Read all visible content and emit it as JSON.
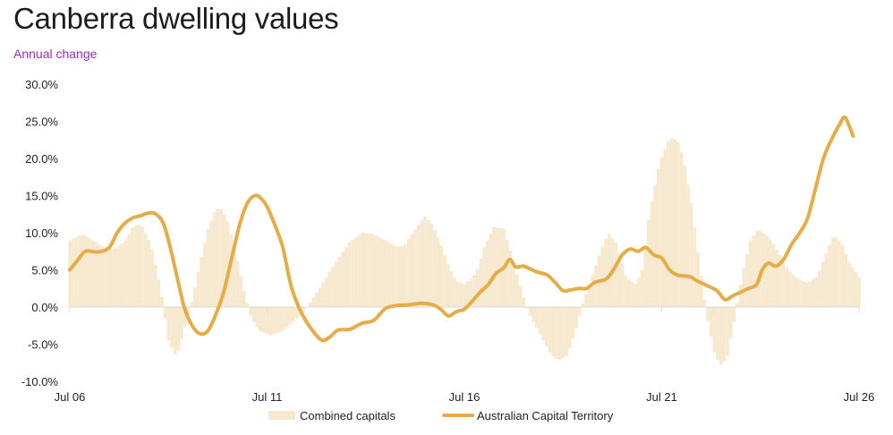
{
  "chart_data": {
    "type": "bar+line",
    "title": "Canberra dwelling values",
    "subtitle": "Annual change",
    "xlabel": "",
    "ylabel": "",
    "ylim": [
      -10,
      30
    ],
    "yticks": [
      -10,
      -5,
      0,
      5,
      10,
      15,
      20,
      25,
      30
    ],
    "ytick_labels": [
      "-10.0%",
      "-5.0%",
      "0.0%",
      "5.0%",
      "10.0%",
      "15.0%",
      "20.0%",
      "25.0%",
      "30.0%"
    ],
    "xlim": [
      2006.5,
      2026.5
    ],
    "xticks": [
      2006.5,
      2011.5,
      2016.5,
      2021.5,
      2026.5
    ],
    "xtick_labels": [
      "Jul 06",
      "Jul 11",
      "Jul 16",
      "Jul 21",
      "Jul 26"
    ],
    "grid": false,
    "legend": "bottom-center",
    "colors": {
      "combined": "#f7e9cf",
      "act": "#e5ac48",
      "axis": "#d9d9d9"
    },
    "series": [
      {
        "name": "Combined capitals",
        "kind": "bar",
        "points": [
          [
            2006.5,
            9.0
          ],
          [
            2006.8,
            9.8
          ],
          [
            2007.0,
            9.3
          ],
          [
            2007.3,
            8.2
          ],
          [
            2007.6,
            7.8
          ],
          [
            2007.9,
            8.8
          ],
          [
            2008.1,
            10.8
          ],
          [
            2008.3,
            11.2
          ],
          [
            2008.55,
            8.5
          ],
          [
            2008.8,
            2.5
          ],
          [
            2009.0,
            -4.5
          ],
          [
            2009.2,
            -6.8
          ],
          [
            2009.4,
            -3.0
          ],
          [
            2009.6,
            1.0
          ],
          [
            2009.8,
            6.0
          ],
          [
            2010.0,
            10.5
          ],
          [
            2010.2,
            13.2
          ],
          [
            2010.35,
            13.2
          ],
          [
            2010.5,
            11.5
          ],
          [
            2010.7,
            7.5
          ],
          [
            2010.9,
            2.5
          ],
          [
            2011.1,
            -1.5
          ],
          [
            2011.3,
            -3.2
          ],
          [
            2011.6,
            -3.8
          ],
          [
            2011.9,
            -3.2
          ],
          [
            2012.1,
            -2.3
          ],
          [
            2012.4,
            -0.8
          ],
          [
            2012.7,
            1.5
          ],
          [
            2013.0,
            4.0
          ],
          [
            2013.3,
            6.5
          ],
          [
            2013.6,
            8.8
          ],
          [
            2013.9,
            10.0
          ],
          [
            2014.2,
            9.8
          ],
          [
            2014.5,
            9.0
          ],
          [
            2014.8,
            8.0
          ],
          [
            2015.0,
            8.5
          ],
          [
            2015.25,
            10.5
          ],
          [
            2015.5,
            12.2
          ],
          [
            2015.7,
            11.0
          ],
          [
            2015.9,
            8.5
          ],
          [
            2016.1,
            5.5
          ],
          [
            2016.3,
            3.5
          ],
          [
            2016.5,
            3.0
          ],
          [
            2016.8,
            4.5
          ],
          [
            2017.0,
            8.0
          ],
          [
            2017.25,
            10.8
          ],
          [
            2017.5,
            10.5
          ],
          [
            2017.7,
            7.0
          ],
          [
            2017.9,
            3.0
          ],
          [
            2018.1,
            -0.5
          ],
          [
            2018.4,
            -3.5
          ],
          [
            2018.7,
            -6.5
          ],
          [
            2018.9,
            -7.2
          ],
          [
            2019.1,
            -6.5
          ],
          [
            2019.3,
            -3.5
          ],
          [
            2019.5,
            0.5
          ],
          [
            2019.7,
            3.5
          ],
          [
            2019.95,
            7.5
          ],
          [
            2020.15,
            10.0
          ],
          [
            2020.35,
            8.5
          ],
          [
            2020.6,
            4.0
          ],
          [
            2020.85,
            3.0
          ],
          [
            2021.0,
            5.0
          ],
          [
            2021.2,
            13.0
          ],
          [
            2021.45,
            19.5
          ],
          [
            2021.7,
            22.8
          ],
          [
            2021.9,
            22.5
          ],
          [
            2022.05,
            20.0
          ],
          [
            2022.25,
            14.0
          ],
          [
            2022.45,
            6.0
          ],
          [
            2022.65,
            -1.5
          ],
          [
            2022.85,
            -6.5
          ],
          [
            2023.0,
            -7.8
          ],
          [
            2023.15,
            -7.0
          ],
          [
            2023.35,
            -1.5
          ],
          [
            2023.55,
            4.5
          ],
          [
            2023.75,
            9.0
          ],
          [
            2023.95,
            10.5
          ],
          [
            2024.2,
            9.5
          ],
          [
            2024.45,
            7.5
          ],
          [
            2024.7,
            5.0
          ],
          [
            2024.95,
            3.8
          ],
          [
            2025.2,
            3.2
          ],
          [
            2025.45,
            4.2
          ],
          [
            2025.65,
            7.0
          ],
          [
            2025.85,
            9.6
          ],
          [
            2026.05,
            8.8
          ],
          [
            2026.25,
            6.0
          ],
          [
            2026.5,
            4.0
          ]
        ]
      },
      {
        "name": "Australian Capital Territory",
        "kind": "line",
        "points": [
          [
            2006.5,
            5.0
          ],
          [
            2006.7,
            6.3
          ],
          [
            2006.9,
            7.5
          ],
          [
            2007.2,
            7.4
          ],
          [
            2007.5,
            8.0
          ],
          [
            2007.7,
            10.0
          ],
          [
            2007.9,
            11.3
          ],
          [
            2008.1,
            12.0
          ],
          [
            2008.3,
            12.3
          ],
          [
            2008.45,
            12.6
          ],
          [
            2008.65,
            12.6
          ],
          [
            2008.85,
            11.5
          ],
          [
            2009.0,
            9.0
          ],
          [
            2009.2,
            4.5
          ],
          [
            2009.4,
            0.0
          ],
          [
            2009.6,
            -2.5
          ],
          [
            2009.8,
            -3.6
          ],
          [
            2010.0,
            -3.2
          ],
          [
            2010.2,
            -1.0
          ],
          [
            2010.4,
            2.0
          ],
          [
            2010.6,
            6.5
          ],
          [
            2010.8,
            11.0
          ],
          [
            2011.0,
            14.0
          ],
          [
            2011.2,
            15.0
          ],
          [
            2011.35,
            14.6
          ],
          [
            2011.5,
            13.5
          ],
          [
            2011.7,
            11.0
          ],
          [
            2011.9,
            8.0
          ],
          [
            2012.1,
            3.0
          ],
          [
            2012.3,
            0.0
          ],
          [
            2012.5,
            -2.0
          ],
          [
            2012.7,
            -3.5
          ],
          [
            2012.9,
            -4.5
          ],
          [
            2013.1,
            -4.0
          ],
          [
            2013.3,
            -3.1
          ],
          [
            2013.6,
            -3.0
          ],
          [
            2013.9,
            -2.2
          ],
          [
            2014.2,
            -1.8
          ],
          [
            2014.5,
            -0.2
          ],
          [
            2014.8,
            0.2
          ],
          [
            2015.1,
            0.3
          ],
          [
            2015.4,
            0.5
          ],
          [
            2015.7,
            0.3
          ],
          [
            2015.9,
            -0.3
          ],
          [
            2016.1,
            -1.2
          ],
          [
            2016.3,
            -0.6
          ],
          [
            2016.5,
            -0.3
          ],
          [
            2016.7,
            0.8
          ],
          [
            2016.9,
            2.0
          ],
          [
            2017.1,
            3.0
          ],
          [
            2017.3,
            4.5
          ],
          [
            2017.5,
            5.3
          ],
          [
            2017.65,
            6.4
          ],
          [
            2017.8,
            5.4
          ],
          [
            2018.0,
            5.5
          ],
          [
            2018.3,
            4.8
          ],
          [
            2018.6,
            4.3
          ],
          [
            2018.8,
            3.3
          ],
          [
            2019.0,
            2.2
          ],
          [
            2019.2,
            2.3
          ],
          [
            2019.4,
            2.5
          ],
          [
            2019.6,
            2.5
          ],
          [
            2019.8,
            3.3
          ],
          [
            2020.1,
            3.8
          ],
          [
            2020.3,
            5.2
          ],
          [
            2020.5,
            7.0
          ],
          [
            2020.7,
            7.8
          ],
          [
            2020.9,
            7.5
          ],
          [
            2021.1,
            8.0
          ],
          [
            2021.3,
            7.0
          ],
          [
            2021.5,
            6.6
          ],
          [
            2021.7,
            5.0
          ],
          [
            2021.9,
            4.3
          ],
          [
            2022.2,
            4.1
          ],
          [
            2022.4,
            3.5
          ],
          [
            2022.6,
            3.0
          ],
          [
            2022.9,
            2.2
          ],
          [
            2023.1,
            1.0
          ],
          [
            2023.3,
            1.5
          ],
          [
            2023.5,
            2.0
          ],
          [
            2023.7,
            2.5
          ],
          [
            2023.9,
            3.0
          ],
          [
            2024.05,
            5.0
          ],
          [
            2024.2,
            5.9
          ],
          [
            2024.4,
            5.5
          ],
          [
            2024.6,
            6.5
          ],
          [
            2024.8,
            8.5
          ],
          [
            2025.0,
            10.0
          ],
          [
            2025.2,
            12.0
          ],
          [
            2025.4,
            16.0
          ],
          [
            2025.6,
            20.0
          ],
          [
            2025.8,
            22.5
          ],
          [
            2026.0,
            24.5
          ],
          [
            2026.15,
            25.5
          ],
          [
            2026.35,
            23.0
          ]
        ]
      }
    ]
  }
}
